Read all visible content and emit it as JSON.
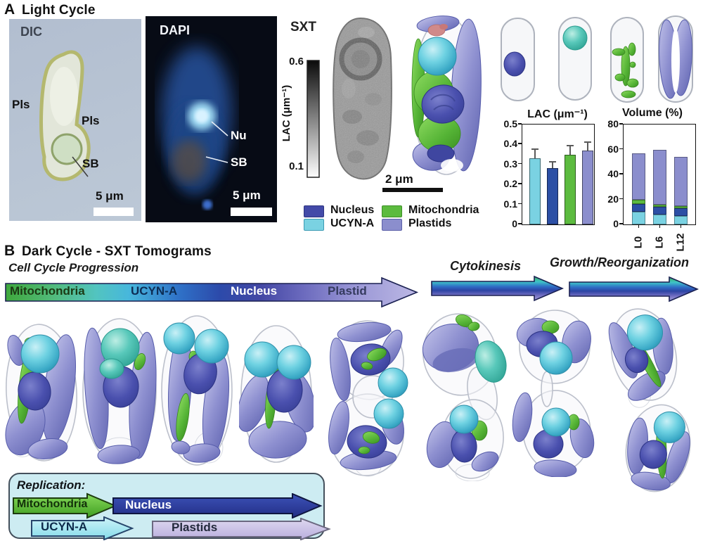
{
  "figure": {
    "background": "#ffffff"
  },
  "colors": {
    "nucleus": "#434aa8",
    "ucyn_a": "#7ad2e2",
    "mitochondria": "#5cbb3f",
    "plastids": "#8b8ecd",
    "nucleus_bar": "#2c4fa5",
    "replication_box_bg": "#cdecf2"
  },
  "panelA": {
    "label": "A",
    "title": "Light Cycle",
    "dic": {
      "label": "DIC",
      "pls_left": "Pls",
      "pls_right": "Pls",
      "sb": "SB",
      "scalebar": "5 μm"
    },
    "dapi": {
      "label": "DAPI",
      "nu": "Nu",
      "sb": "SB",
      "scalebar": "5 μm"
    },
    "sxt": {
      "label": "SXT",
      "colorbar_top": "0.6",
      "colorbar_bottom": "0.1",
      "colorbar_label": "LAC (μm⁻¹)",
      "scalebar": "2 μm"
    },
    "legend": [
      {
        "label": "Nucleus",
        "color": "#434aa8",
        "border": "#2d3480"
      },
      {
        "label": "UCYN-A",
        "color": "#7ad2e2",
        "border": "#3d9ab3"
      },
      {
        "label": "Mitochondria",
        "color": "#5cbb3f",
        "border": "#3c8f26"
      },
      {
        "label": "Plastids",
        "color": "#8b8ecd",
        "border": "#5c60a8"
      }
    ]
  },
  "chart_data": [
    {
      "type": "bar",
      "title": "LAC (μm⁻¹)",
      "categories": [
        "UCYN-A",
        "Nucleus",
        "Mitochondria",
        "Plastids"
      ],
      "values": [
        0.33,
        0.28,
        0.35,
        0.37
      ],
      "errors": [
        0.045,
        0.03,
        0.04,
        0.04
      ],
      "colors": [
        "#7ad2e2",
        "#2c4fa5",
        "#5cbb3f",
        "#8b8ecd"
      ],
      "xlabel": "",
      "ylabel": "",
      "ylim": [
        0,
        0.5
      ],
      "yticks": [
        0,
        0.1,
        0.2,
        0.3,
        0.4,
        0.5
      ],
      "grid": false,
      "legend_position": "none"
    },
    {
      "type": "stacked-bar",
      "title": "Volume (%)",
      "categories": [
        "L0",
        "L6",
        "L12"
      ],
      "series": [
        {
          "name": "UCYN-A",
          "color": "#7ad2e2",
          "values": [
            10,
            8,
            7
          ]
        },
        {
          "name": "Nucleus",
          "color": "#2c4fa5",
          "values": [
            6.5,
            6,
            6
          ]
        },
        {
          "name": "Mitochondria",
          "color": "#5cbb3f",
          "values": [
            3,
            2,
            1.5
          ]
        },
        {
          "name": "Plastids",
          "color": "#8b8ecd",
          "values": [
            37.5,
            44,
            39.5
          ]
        }
      ],
      "totals": [
        57,
        60,
        54
      ],
      "xlabel": "",
      "ylabel": "",
      "ylim": [
        0,
        80
      ],
      "yticks": [
        0,
        20,
        40,
        60,
        80
      ],
      "grid": false,
      "legend_position": "none"
    }
  ],
  "panelB": {
    "label": "B",
    "title": "Dark Cycle - SXT Tomograms",
    "progression_label": "Cell Cycle Progression",
    "arrow_labels": [
      "Mitochondria",
      "UCYN-A",
      "Nucleus",
      "Plastid"
    ],
    "cytokinesis_label": "Cytokinesis",
    "growth_label": "Growth/Reorganization",
    "replication": {
      "title": "Replication:",
      "arrows": [
        {
          "label": "Mitochondria",
          "color": "#5cbb3f"
        },
        {
          "label": "Nucleus",
          "color": "#2b3f9f"
        },
        {
          "label": "UCYN-A",
          "color": "#aee8f2"
        },
        {
          "label": "Plastids",
          "color": "#cfc6e8"
        }
      ]
    }
  }
}
